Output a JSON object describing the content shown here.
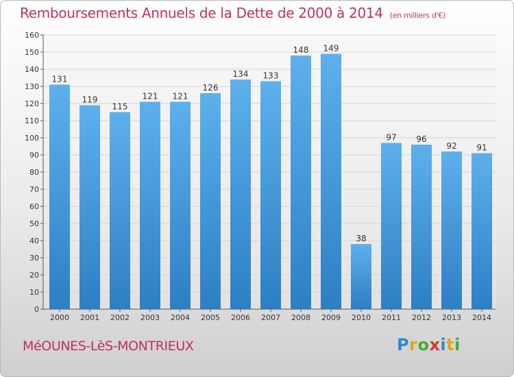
{
  "header": {
    "title": "Remboursements Annuels de la Dette de 2000 à 2014",
    "subtitle": "(en milliers d'€)"
  },
  "footer": {
    "commune": "MéOUNES-LèS-MONTRIEUX",
    "logo": "Proxiti",
    "logo_letters": [
      {
        "char": "P",
        "color": "#2a8bd0"
      },
      {
        "char": "r",
        "color": "#e8a21a"
      },
      {
        "char": "o",
        "color": "#4aa83a"
      },
      {
        "char": "x",
        "color": "#d8342f"
      },
      {
        "char": "i",
        "color": "#2a8bd0"
      },
      {
        "char": "t",
        "color": "#e8a21a"
      },
      {
        "char": "i",
        "color": "#4aa83a"
      }
    ]
  },
  "colors": {
    "accent": "#c0305f",
    "bar_top": "#5db0ec",
    "bar_bottom": "#2d7fc4"
  },
  "chart_data": {
    "type": "bar",
    "title": "Remboursements Annuels de la Dette de 2000 à 2014",
    "ylabel": "en milliers d'€",
    "xlabel": "",
    "categories": [
      "2000",
      "2001",
      "2002",
      "2003",
      "2004",
      "2005",
      "2006",
      "2007",
      "2008",
      "2009",
      "2010",
      "2011",
      "2012",
      "2013",
      "2014"
    ],
    "values": [
      131,
      119,
      115,
      121,
      121,
      126,
      134,
      133,
      148,
      149,
      38,
      97,
      96,
      92,
      91
    ],
    "ylim": [
      0,
      160
    ],
    "yticks": [
      0,
      10,
      20,
      30,
      40,
      50,
      60,
      70,
      80,
      90,
      100,
      110,
      120,
      130,
      140,
      150,
      160
    ],
    "grid": true
  }
}
